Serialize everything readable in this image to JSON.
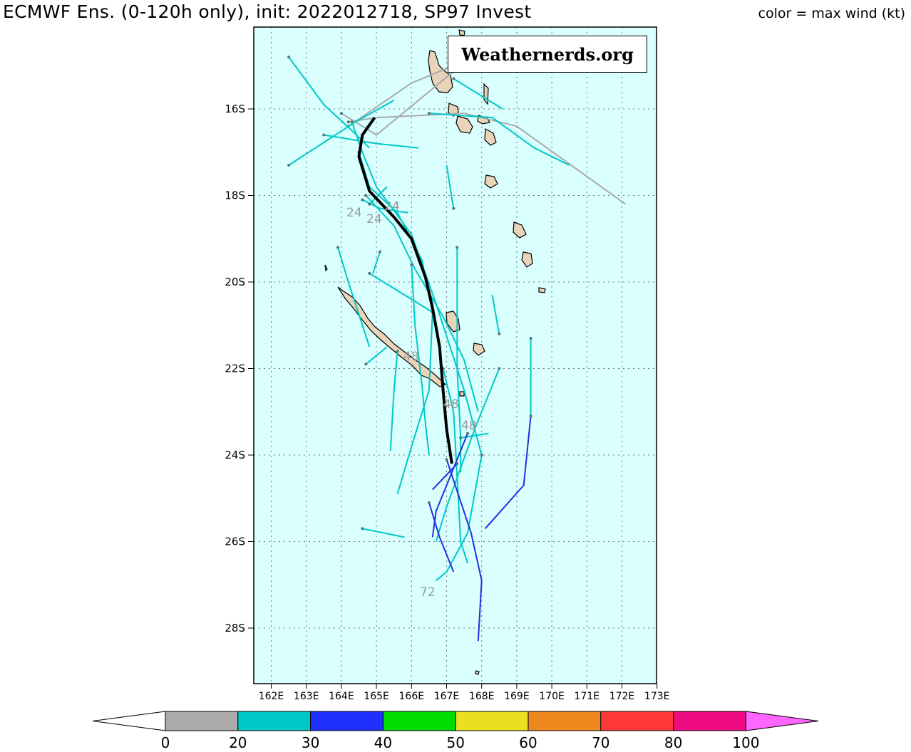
{
  "title_left": "ECMWF Ens. (0-120h only), init: 2022012718, SP97 Invest",
  "title_right": "color = max wind (kt)",
  "watermark": "Weathernerds.org",
  "map": {
    "background": "#d9ffff",
    "land_color": "#e8d4b8",
    "lat_labels": [
      "16S",
      "18S",
      "20S",
      "22S",
      "24S",
      "26S",
      "28S"
    ],
    "lon_labels": [
      "162E",
      "163E",
      "164E",
      "165E",
      "166E",
      "167E",
      "168E",
      "169E",
      "170E",
      "171E",
      "172E",
      "173E"
    ]
  },
  "time_labels": [
    "24",
    "24",
    "24",
    "48",
    "48",
    "48",
    "72"
  ],
  "tracks": [
    {
      "color": "#aaaaaa",
      "points": [
        [
          164.2,
          16.3
        ],
        [
          165.0,
          16.2
        ],
        [
          167.5,
          16.1
        ],
        [
          169.0,
          16.4
        ],
        [
          172.1,
          18.2
        ]
      ]
    },
    {
      "color": "#aaaaaa",
      "points": [
        [
          164.0,
          16.1
        ],
        [
          165.0,
          16.6
        ],
        [
          166.5,
          15.6
        ],
        [
          167.4,
          15.0
        ]
      ]
    },
    {
      "color": "#aaaaaa",
      "points": [
        [
          164.2,
          16.4
        ],
        [
          166.0,
          15.4
        ],
        [
          167.2,
          15.0
        ]
      ]
    },
    {
      "color": "#00c8c8",
      "points": [
        [
          162.5,
          14.8
        ],
        [
          163.5,
          15.9
        ],
        [
          164.3,
          16.5
        ],
        [
          164.8,
          16.9
        ]
      ]
    },
    {
      "color": "#00c8c8",
      "points": [
        [
          162.5,
          17.3
        ],
        [
          164.4,
          16.3
        ],
        [
          165.5,
          15.8
        ]
      ]
    },
    {
      "color": "#00c8c8",
      "points": [
        [
          163.5,
          16.6
        ],
        [
          165.0,
          16.8
        ],
        [
          166.2,
          16.9
        ]
      ]
    },
    {
      "color": "#00c8c8",
      "points": [
        [
          166.5,
          16.1
        ],
        [
          168.3,
          16.2
        ],
        [
          169.5,
          16.9
        ],
        [
          170.5,
          17.3
        ]
      ]
    },
    {
      "color": "#00c8c8",
      "points": [
        [
          167.2,
          15.3
        ],
        [
          168.6,
          16.0
        ]
      ]
    },
    {
      "color": "#00c8c8",
      "points": [
        [
          164.3,
          16.3
        ],
        [
          164.6,
          17.0
        ],
        [
          165.0,
          17.8
        ],
        [
          166.0,
          18.9
        ],
        [
          166.7,
          20.5
        ],
        [
          167.1,
          21.5
        ],
        [
          167.5,
          22.5
        ],
        [
          168.0,
          24.0
        ]
      ]
    },
    {
      "color": "#00c8c8",
      "points": [
        [
          164.5,
          17.0
        ],
        [
          164.8,
          17.8
        ],
        [
          165.6,
          18.4
        ],
        [
          166.3,
          19.5
        ],
        [
          166.6,
          20.7
        ]
      ]
    },
    {
      "color": "#00c8c8",
      "points": [
        [
          164.6,
          18.1
        ],
        [
          165.1,
          18.3
        ],
        [
          165.9,
          18.4
        ]
      ]
    },
    {
      "color": "#00c8c8",
      "points": [
        [
          164.8,
          18.2
        ],
        [
          165.3,
          17.8
        ]
      ]
    },
    {
      "color": "#00c8c8",
      "points": [
        [
          164.7,
          18.0
        ],
        [
          165.5,
          18.7
        ],
        [
          166.1,
          19.7
        ],
        [
          166.9,
          20.8
        ],
        [
          167.5,
          21.8
        ],
        [
          167.9,
          23.0
        ]
      ]
    },
    {
      "color": "#00c8c8",
      "points": [
        [
          164.8,
          19.8
        ],
        [
          166.6,
          20.7
        ]
      ]
    },
    {
      "color": "#00c8c8",
      "points": [
        [
          165.1,
          19.3
        ],
        [
          164.9,
          19.8
        ]
      ]
    },
    {
      "color": "#00c8c8",
      "points": [
        [
          163.9,
          19.2
        ],
        [
          164.2,
          20.0
        ],
        [
          164.8,
          21.5
        ]
      ]
    },
    {
      "color": "#00c8c8",
      "points": [
        [
          164.7,
          21.9
        ],
        [
          165.3,
          21.5
        ]
      ]
    },
    {
      "color": "#00c8c8",
      "points": [
        [
          166.0,
          19.6
        ],
        [
          166.1,
          21.0
        ],
        [
          166.3,
          22.4
        ],
        [
          166.4,
          23.3
        ],
        [
          166.5,
          24.0
        ]
      ]
    },
    {
      "color": "#00c8c8",
      "points": [
        [
          166.6,
          20.7
        ],
        [
          166.5,
          22.5
        ],
        [
          166.0,
          23.8
        ],
        [
          165.6,
          24.9
        ]
      ]
    },
    {
      "color": "#00c8c8",
      "points": [
        [
          165.6,
          21.6
        ],
        [
          165.5,
          22.5
        ],
        [
          165.4,
          23.9
        ]
      ]
    },
    {
      "color": "#00c8c8",
      "points": [
        [
          166.9,
          22.0
        ],
        [
          167.2,
          23.0
        ],
        [
          167.3,
          24.5
        ],
        [
          167.4,
          26.0
        ],
        [
          167.6,
          26.5
        ]
      ]
    },
    {
      "color": "#00c8c8",
      "points": [
        [
          167.3,
          19.2
        ],
        [
          167.3,
          22.0
        ],
        [
          167.4,
          23.6
        ],
        [
          167.4,
          24.4
        ]
      ]
    },
    {
      "color": "#00c8c8",
      "points": [
        [
          167.2,
          18.3
        ],
        [
          167.0,
          17.3
        ]
      ]
    },
    {
      "color": "#00c8c8",
      "points": [
        [
          167.4,
          23.6
        ],
        [
          168.2,
          23.5
        ]
      ]
    },
    {
      "color": "#00c8c8",
      "points": [
        [
          168.5,
          22.0
        ],
        [
          167.8,
          23.4
        ],
        [
          167.0,
          25.2
        ],
        [
          166.7,
          26.0
        ]
      ]
    },
    {
      "color": "#00c8c8",
      "points": [
        [
          168.0,
          24.0
        ],
        [
          167.6,
          25.8
        ],
        [
          167.0,
          26.7
        ],
        [
          166.7,
          26.9
        ]
      ]
    },
    {
      "color": "#00c8c8",
      "points": [
        [
          164.6,
          25.7
        ],
        [
          165.8,
          25.9
        ]
      ]
    },
    {
      "color": "#00c8c8",
      "points": [
        [
          168.5,
          21.2
        ],
        [
          168.3,
          20.3
        ]
      ]
    },
    {
      "color": "#00c8c8",
      "points": [
        [
          169.4,
          21.3
        ],
        [
          169.4,
          23.1
        ]
      ]
    },
    {
      "color": "#2030e0",
      "points": [
        [
          167.3,
          24.2
        ],
        [
          166.6,
          24.8
        ]
      ]
    },
    {
      "color": "#2030e0",
      "points": [
        [
          167.6,
          23.5
        ],
        [
          167.3,
          24.1
        ],
        [
          166.7,
          25.3
        ],
        [
          166.6,
          25.9
        ]
      ]
    },
    {
      "color": "#2030e0",
      "points": [
        [
          166.5,
          25.1
        ],
        [
          166.8,
          25.9
        ],
        [
          167.2,
          26.7
        ]
      ]
    },
    {
      "color": "#2030e0",
      "points": [
        [
          167.0,
          24.1
        ],
        [
          167.7,
          25.8
        ],
        [
          168.0,
          26.9
        ],
        [
          167.9,
          28.3
        ]
      ]
    },
    {
      "color": "#2030e0",
      "points": [
        [
          169.4,
          23.1
        ],
        [
          169.2,
          24.7
        ],
        [
          168.1,
          25.7
        ]
      ]
    }
  ],
  "mean_track": [
    [
      164.95,
      16.2
    ],
    [
      164.6,
      16.6
    ],
    [
      164.5,
      17.1
    ],
    [
      164.8,
      17.9
    ],
    [
      165.5,
      18.5
    ],
    [
      166.0,
      19.0
    ],
    [
      166.4,
      19.9
    ],
    [
      166.6,
      20.6
    ],
    [
      166.8,
      21.5
    ],
    [
      166.9,
      22.5
    ],
    [
      167.0,
      23.4
    ],
    [
      167.15,
      24.2
    ]
  ],
  "colorbar": {
    "ticks": [
      "0",
      "20",
      "30",
      "40",
      "50",
      "60",
      "70",
      "80",
      "100"
    ],
    "under_color": "#ffffff",
    "over_color": "#ff66ff",
    "colors": [
      "#aaaaaa",
      "#00c8c8",
      "#2030ff",
      "#00dd00",
      "#e8e020",
      "#f08820",
      "#ff3838",
      "#ee0a80"
    ]
  }
}
